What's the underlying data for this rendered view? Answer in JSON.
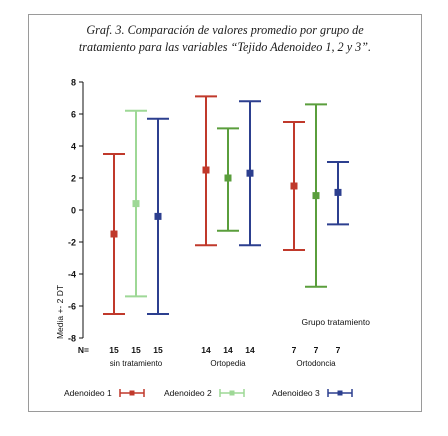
{
  "caption": {
    "line1": "Graf. 3. Comparación de valores promedio por grupo de",
    "line2": "tratamiento para las variables “Tejido Adenoideo 1, 2 y 3”."
  },
  "chart_data": {
    "type": "errorbar",
    "ylabel": "Media +- 2 DT",
    "xlabel": "Grupo tratamiento",
    "ylim": [
      -8,
      8
    ],
    "yticks": [
      "8",
      "6",
      "4",
      "2",
      "0",
      "-2",
      "-4",
      "-6",
      "-8"
    ],
    "n_label": "N=",
    "groups": [
      {
        "label": "sin tratamiento",
        "n": [
          "15",
          "15",
          "15"
        ]
      },
      {
        "label": "Ortopedia",
        "n": [
          "14",
          "14",
          "14"
        ]
      },
      {
        "label": "Ortodoncia",
        "n": [
          "7",
          "7",
          "7"
        ]
      }
    ],
    "series": [
      {
        "name": "Adenoideo 1",
        "color": "#c0392b",
        "mean": [
          -1.5,
          2.5,
          1.5
        ],
        "lower": [
          -6.5,
          -2.2,
          -2.5
        ],
        "upper": [
          3.5,
          7.1,
          5.5
        ]
      },
      {
        "name": "Adenoideo 2",
        "color": "#5a9e3c",
        "mean": [
          0.4,
          2.0,
          0.9
        ],
        "lower": [
          -5.4,
          -1.3,
          -4.8
        ],
        "upper": [
          6.2,
          5.1,
          6.6
        ]
      },
      {
        "name": "Adenoideo 3",
        "color": "#2c3f8f",
        "mean": [
          -0.4,
          2.3,
          1.1
        ],
        "lower": [
          -6.5,
          -2.2,
          -0.9
        ],
        "upper": [
          5.7,
          6.8,
          3.0
        ]
      }
    ],
    "light_series_colors": [
      "#8fd18a"
    ],
    "grid": false,
    "legend": "bottom"
  }
}
